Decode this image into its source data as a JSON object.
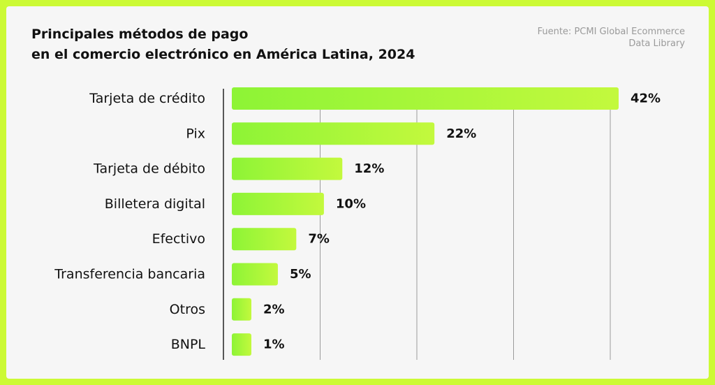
{
  "colors": {
    "frame": "#ccfa35",
    "background": "#f6f6f6",
    "bar_start": "#8df436",
    "bar_end": "#c3f93d",
    "axis": "#222222",
    "grid": "#9a9a9a"
  },
  "header": {
    "title_line1": "Principales métodos de pago",
    "title_line2": "en el comercio electrónico en América Latina, 2024",
    "source_line1": "Fuente: PCMI Global Ecommerce",
    "source_line2": "Data Library"
  },
  "chart_data": {
    "type": "bar",
    "orientation": "horizontal",
    "categories": [
      "Tarjeta de crédito",
      "Pix",
      "Tarjeta de débito",
      "Billetera digital",
      "Efectivo",
      "Transferencia bancaria",
      "Otros",
      "BNPL"
    ],
    "values": [
      42,
      22,
      12,
      10,
      7,
      5,
      2,
      1
    ],
    "labels": [
      "42%",
      "22%",
      "12%",
      "10%",
      "7%",
      "5%",
      "2%",
      "1%"
    ],
    "unit": "%",
    "xlim": [
      0,
      42
    ],
    "grid": true,
    "legend": "none"
  }
}
